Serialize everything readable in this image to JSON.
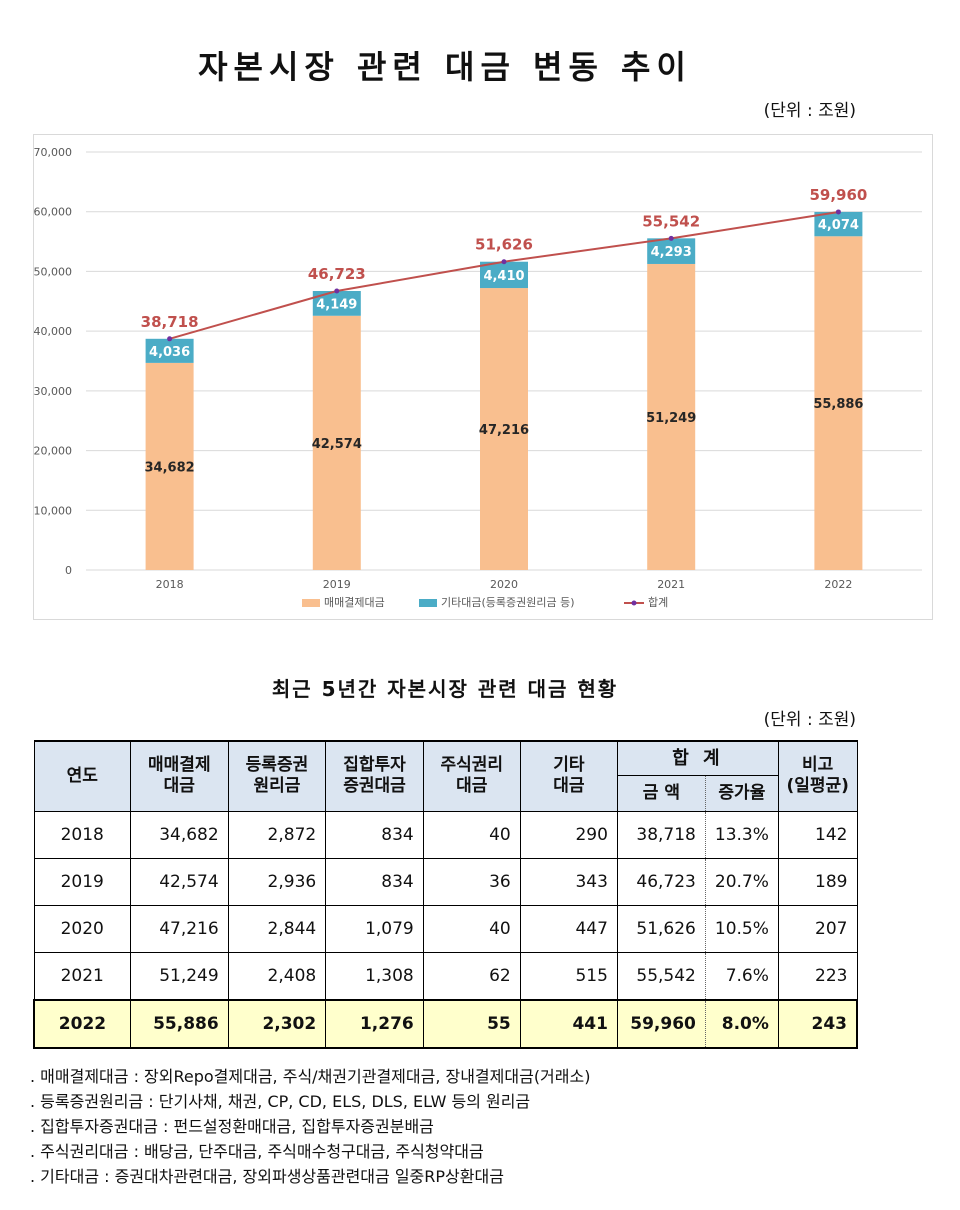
{
  "title": "자본시장 관련 대금 변동 추이",
  "unit_label": "(단위 : 조원)",
  "chart_data": {
    "type": "bar",
    "stacked": true,
    "categories": [
      "2018",
      "2019",
      "2020",
      "2021",
      "2022"
    ],
    "series": [
      {
        "name": "매매결제대금",
        "type": "bar",
        "color": "#f9bf8f",
        "values": [
          34682,
          42574,
          47216,
          51249,
          55886
        ]
      },
      {
        "name": "기타대금(등록증권원리금 등)",
        "type": "bar",
        "color": "#4bacc6",
        "values": [
          4036,
          4149,
          4410,
          4293,
          4074
        ]
      },
      {
        "name": "합계",
        "type": "line",
        "color": "#c0504d",
        "values": [
          38718,
          46723,
          51626,
          55542,
          59960
        ]
      }
    ],
    "ylim": [
      0,
      70000
    ],
    "yticks": [
      "70,000",
      "60,000",
      "50,000",
      "40,000",
      "30,000",
      "20,000",
      "10,000",
      "0"
    ],
    "bottom_labels": [
      "34,682",
      "42,574",
      "47,216",
      "51,249",
      "55,886"
    ],
    "mid_labels": [
      "4,036",
      "4,149",
      "4,410",
      "4,293",
      "4,074"
    ],
    "total_labels": [
      "38,718",
      "46,723",
      "51,626",
      "55,542",
      "59,960"
    ],
    "grid": true,
    "legend_position": "bottom"
  },
  "table_title": "최근 5년간 자본시장 관련 대금 현황",
  "table": {
    "headers": {
      "year": "연도",
      "settlement_l1": "매매결제",
      "settlement_l2": "대금",
      "registered_l1": "등록증권",
      "registered_l2": "원리금",
      "collective_l1": "집합투자",
      "collective_l2": "증권대금",
      "stockright_l1": "주식권리",
      "stockright_l2": "대금",
      "other_l1": "기타",
      "other_l2": "대금",
      "total": "합 계",
      "amount": "금 액",
      "growth": "증가율",
      "note_l1": "비고",
      "note_l2": "(일평균)"
    },
    "rows": [
      {
        "year": "2018",
        "settlement": "34,682",
        "registered": "2,872",
        "collective": "834",
        "stockright": "40",
        "other": "290",
        "amount": "38,718",
        "growth": "13.3%",
        "daily": "142"
      },
      {
        "year": "2019",
        "settlement": "42,574",
        "registered": "2,936",
        "collective": "834",
        "stockright": "36",
        "other": "343",
        "amount": "46,723",
        "growth": "20.7%",
        "daily": "189"
      },
      {
        "year": "2020",
        "settlement": "47,216",
        "registered": "2,844",
        "collective": "1,079",
        "stockright": "40",
        "other": "447",
        "amount": "51,626",
        "growth": "10.5%",
        "daily": "207"
      },
      {
        "year": "2021",
        "settlement": "51,249",
        "registered": "2,408",
        "collective": "1,308",
        "stockright": "62",
        "other": "515",
        "amount": "55,542",
        "growth": "7.6%",
        "daily": "223"
      },
      {
        "year": "2022",
        "settlement": "55,886",
        "registered": "2,302",
        "collective": "1,276",
        "stockright": "55",
        "other": "441",
        "amount": "59,960",
        "growth": "8.0%",
        "daily": "243"
      }
    ]
  },
  "notes": [
    ". 매매결제대금 : 장외Repo결제대금, 주식/채권기관결제대금, 장내결제대금(거래소)",
    ". 등록증권원리금 : 단기사채, 채권, CP, CD, ELS, DLS, ELW 등의 원리금",
    ". 집합투자증권대금 : 펀드설정환매대금, 집합투자증권분배금",
    ". 주식권리대금 : 배당금, 단주대금, 주식매수청구대금, 주식청약대금",
    ". 기타대금 : 증권대차관련대금, 장외파생상품관련대금 일중RP상환대금"
  ]
}
